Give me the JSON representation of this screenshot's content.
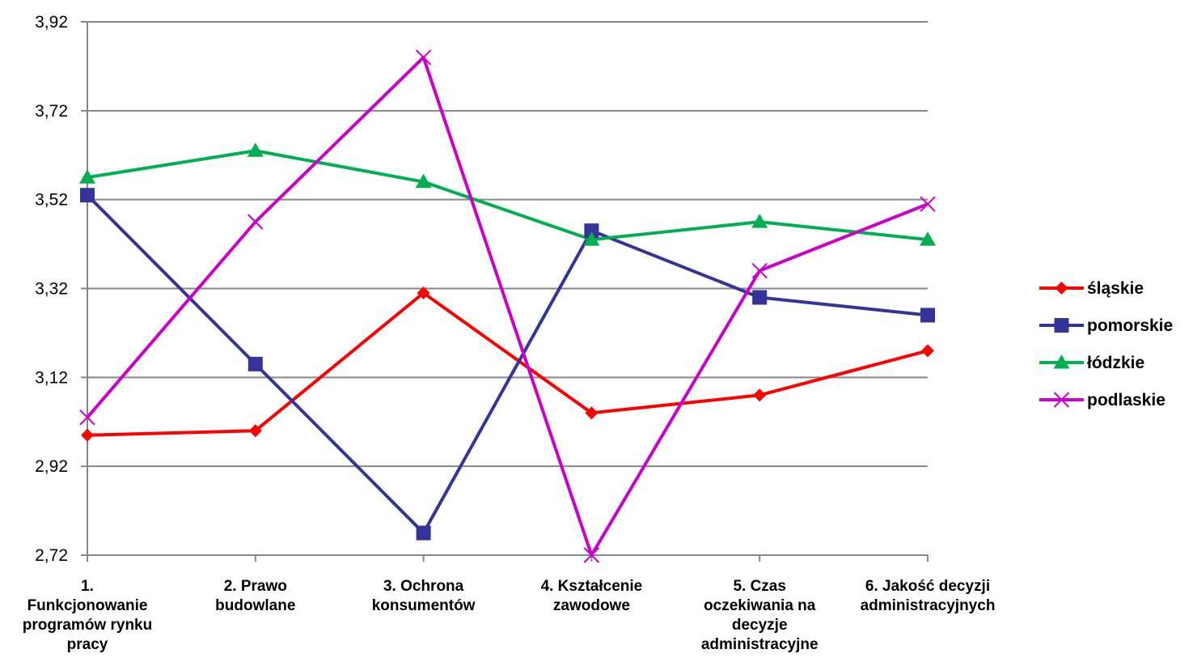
{
  "chart_data": {
    "type": "line",
    "title": "",
    "xlabel": "",
    "ylabel": "",
    "ylim": [
      2.72,
      3.92
    ],
    "yticks": [
      "3,92",
      "3,72",
      "3,52",
      "3,32",
      "3,12",
      "2,92",
      "2,72"
    ],
    "ytick_values": [
      3.92,
      3.72,
      3.52,
      3.32,
      3.12,
      2.92,
      2.72
    ],
    "grid": true,
    "legend_position": "right",
    "categories": [
      [
        "1.",
        "Funkcjonowanie",
        "programów rynku",
        "pracy"
      ],
      [
        "2. Prawo",
        "budowlane"
      ],
      [
        "3. Ochrona",
        "konsumentów"
      ],
      [
        "4. Kształcenie",
        "zawodowe"
      ],
      [
        "5. Czas",
        "oczekiwania na",
        "decyzje",
        "administracyjne"
      ],
      [
        "6. Jakość decyzji",
        "administracyjnych"
      ]
    ],
    "series": [
      {
        "name": "śląskie",
        "color": "#ff0000",
        "marker": "diamond",
        "values": [
          2.99,
          3.0,
          3.31,
          3.04,
          3.08,
          3.18
        ]
      },
      {
        "name": "pomorskie",
        "color": "#333399",
        "marker": "square",
        "values": [
          3.53,
          3.15,
          2.77,
          3.45,
          3.3,
          3.26
        ]
      },
      {
        "name": "łódzkie",
        "color": "#00b050",
        "marker": "triangle",
        "values": [
          3.57,
          3.63,
          3.56,
          3.43,
          3.47,
          3.43
        ]
      },
      {
        "name": "podlaskie",
        "color": "#cc00cc",
        "marker": "x",
        "values": [
          3.03,
          3.47,
          3.84,
          2.72,
          3.36,
          3.51
        ]
      }
    ]
  }
}
